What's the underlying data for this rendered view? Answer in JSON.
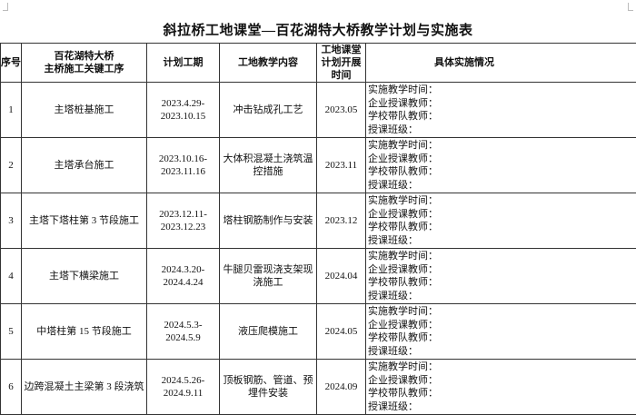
{
  "title": "斜拉桥工地课堂—百花湖特大桥教学计划与实施表",
  "headers": {
    "no": "序号",
    "process_line1": "百花湖特大桥",
    "process_line2": "主桥施工关键工序",
    "period": "计划工期",
    "content": "工地教学内容",
    "time_line1": "工地课堂",
    "time_line2": "计划开展时间",
    "impl": "具体实施情况"
  },
  "impl_labels": [
    "实施教学时间：",
    "企业授课教师：",
    "学校带队教师：",
    "授课班级："
  ],
  "rows": [
    {
      "no": "1",
      "process": "主塔桩基施工",
      "period": "2023.4.29-2023.10.15",
      "content": "冲击钻成孔工艺",
      "time": "2023.05"
    },
    {
      "no": "2",
      "process": "主塔承台施工",
      "period": "2023.10.16-2023.11.16",
      "content": "大体积混凝土浇筑温控措施",
      "time": "2023.11"
    },
    {
      "no": "3",
      "process": "主塔下塔柱第 3 节段施工",
      "period": "2023.12.11-2023.12.23",
      "content": "塔柱钢筋制作与安装",
      "time": "2023.12"
    },
    {
      "no": "4",
      "process": "主塔下横梁施工",
      "period": "2024.3.20-2024.4.24",
      "content": "牛腿贝雷现浇支架现浇施工",
      "time": "2024.04"
    },
    {
      "no": "5",
      "process": "中塔柱第 15 节段施工",
      "period": "2024.5.3-2024.5.9",
      "content": "液压爬模施工",
      "time": "2024.05"
    },
    {
      "no": "6",
      "process": "边跨混凝土主梁第 3 段浇筑",
      "period": "2024.5.26-2024.9.11",
      "content": "顶板钢筋、管道、预埋件安装",
      "time": "2024.09"
    }
  ]
}
